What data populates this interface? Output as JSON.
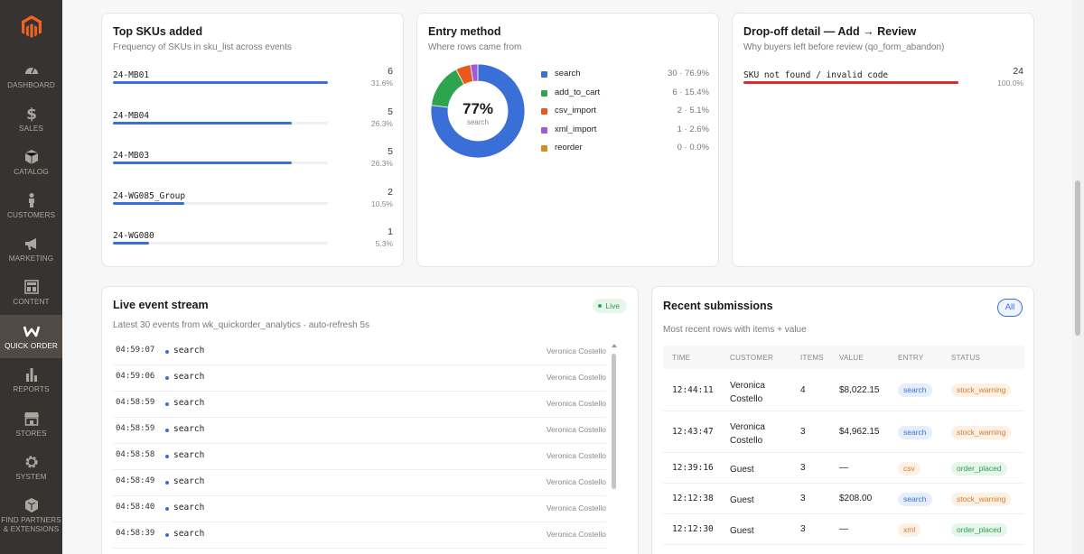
{
  "sidebar": {
    "items": [
      {
        "label": "DASHBOARD",
        "icon": "dashboard-icon"
      },
      {
        "label": "SALES",
        "icon": "dollar-icon"
      },
      {
        "label": "CATALOG",
        "icon": "box-icon"
      },
      {
        "label": "CUSTOMERS",
        "icon": "person-icon"
      },
      {
        "label": "MARKETING",
        "icon": "megaphone-icon"
      },
      {
        "label": "CONTENT",
        "icon": "layout-icon"
      },
      {
        "label": "QUICK ORDER",
        "icon": "quick-order-icon"
      },
      {
        "label": "REPORTS",
        "icon": "bar-chart-icon"
      },
      {
        "label": "STORES",
        "icon": "store-icon"
      },
      {
        "label": "SYSTEM",
        "icon": "gear-icon"
      },
      {
        "label": "FIND PARTNERS & EXTENSIONS",
        "icon": "extensions-icon"
      }
    ],
    "active": "QUICK ORDER"
  },
  "top_skus": {
    "title": "Top SKUs added",
    "subtitle": "Frequency of SKUs in sku_list across events",
    "rows": [
      {
        "sku": "24-MB01",
        "count": "6",
        "pct": "31.6%",
        "fraction": 1.0
      },
      {
        "sku": "24-MB04",
        "count": "5",
        "pct": "26.3%",
        "fraction": 0.833
      },
      {
        "sku": "24-MB03",
        "count": "5",
        "pct": "26.3%",
        "fraction": 0.833
      },
      {
        "sku": "24-WG085_Group",
        "count": "2",
        "pct": "10.5%",
        "fraction": 0.333
      },
      {
        "sku": "24-WG080",
        "count": "1",
        "pct": "5.3%",
        "fraction": 0.167
      }
    ]
  },
  "entry_method": {
    "title": "Entry method",
    "subtitle": "Where rows came from",
    "center_value": "77%",
    "center_label": "search",
    "chart_data": {
      "type": "pie",
      "slices": [
        {
          "name": "search",
          "value": 30,
          "color": "#3a6fd8"
        },
        {
          "name": "add_to_cart",
          "value": 6,
          "color": "#2ea44f"
        },
        {
          "name": "csv_import",
          "value": 2,
          "color": "#e8591f"
        },
        {
          "name": "xml_import",
          "value": 1,
          "color": "#a259d9"
        },
        {
          "name": "reorder",
          "value": 0,
          "color": "#d98a1a"
        }
      ]
    },
    "legend": [
      {
        "name": "search",
        "value": "30 · 76.9%",
        "color": "#3a6fd8"
      },
      {
        "name": "add_to_cart",
        "value": "6 · 15.4%",
        "color": "#2ea44f"
      },
      {
        "name": "csv_import",
        "value": "2 · 5.1%",
        "color": "#e8591f"
      },
      {
        "name": "xml_import",
        "value": "1 · 2.6%",
        "color": "#a259d9"
      },
      {
        "name": "reorder",
        "value": "0 · 0.0%",
        "color": "#d98a1a"
      }
    ]
  },
  "dropoff": {
    "title": "Drop-off detail — Add → Review",
    "subtitle": "Why buyers left before review (qo_form_abandon)",
    "rows": [
      {
        "reason": "SKU not found / invalid code",
        "count": "24",
        "pct": "100.0%",
        "fraction": 1.0
      }
    ]
  },
  "live_stream": {
    "title": "Live event stream",
    "badge": "Live",
    "subtitle": "Latest 30 events from wk_quickorder_analytics · auto-refresh 5s",
    "events": [
      {
        "time": "04:59:07",
        "type": "search",
        "customer": "Veronica Costello"
      },
      {
        "time": "04:59:06",
        "type": "search",
        "customer": "Veronica Costello"
      },
      {
        "time": "04:58:59",
        "type": "search",
        "customer": "Veronica Costello"
      },
      {
        "time": "04:58:59",
        "type": "search",
        "customer": "Veronica Costello"
      },
      {
        "time": "04:58:58",
        "type": "search",
        "customer": "Veronica Costello"
      },
      {
        "time": "04:58:49",
        "type": "search",
        "customer": "Veronica Costello"
      },
      {
        "time": "04:58:40",
        "type": "search",
        "customer": "Veronica Costello"
      },
      {
        "time": "04:58:39",
        "type": "search",
        "customer": "Veronica Costello"
      }
    ]
  },
  "submissions": {
    "title": "Recent submissions",
    "all_label": "All",
    "subtitle": "Most recent rows with items + value",
    "columns": [
      "TIME",
      "CUSTOMER",
      "ITEMS",
      "VALUE",
      "ENTRY",
      "STATUS"
    ],
    "rows": [
      {
        "time": "12:44:11",
        "customer": "Veronica Costello",
        "items": "4",
        "value": "$8,022.15",
        "entry": "search",
        "status": "stock_warning"
      },
      {
        "time": "12:43:47",
        "customer": "Veronica Costello",
        "items": "3",
        "value": "$4,962.15",
        "entry": "search",
        "status": "stock_warning"
      },
      {
        "time": "12:39:16",
        "customer": "Guest",
        "items": "3",
        "value": "—",
        "entry": "csv",
        "status": "order_placed"
      },
      {
        "time": "12:12:38",
        "customer": "Guest",
        "items": "3",
        "value": "$208.00",
        "entry": "search",
        "status": "stock_warning"
      },
      {
        "time": "12:12:30",
        "customer": "Guest",
        "items": "3",
        "value": "—",
        "entry": "xml",
        "status": "order_placed"
      }
    ]
  }
}
